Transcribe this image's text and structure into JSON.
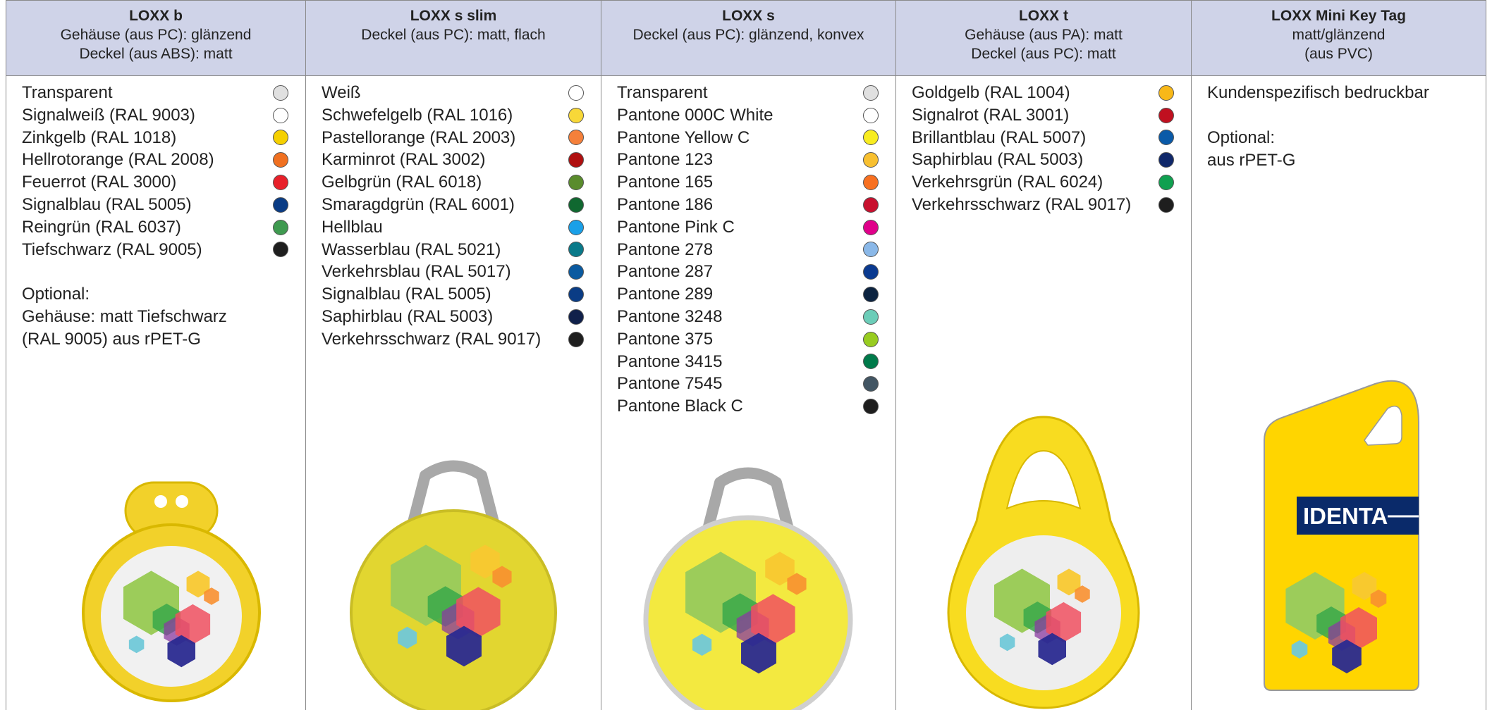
{
  "columns": [
    {
      "title": "LOXX b",
      "subtitle": [
        "Gehäuse (aus PC): glänzend",
        "Deckel (aus ABS): matt"
      ],
      "items": [
        {
          "name": "Transparent",
          "color": "#e0e0e0"
        },
        {
          "name": "Signalweiß (RAL 9003)",
          "color": "#ffffff"
        },
        {
          "name": "Zinkgelb (RAL 1018)",
          "color": "#f5d000"
        },
        {
          "name": "Hellrotorange (RAL 2008)",
          "color": "#f07020"
        },
        {
          "name": "Feuerrot (RAL 3000)",
          "color": "#e8202a"
        },
        {
          "name": "Signalblau (RAL 5005)",
          "color": "#0a3c85"
        },
        {
          "name": "Reingrün (RAL 6037)",
          "color": "#3f9a50"
        },
        {
          "name": "Tiefschwarz (RAL 9005)",
          "color": "#1e1e1e"
        }
      ],
      "notes": [
        [
          "Optional:",
          "Gehäuse: matt Tiefschwarz",
          "(RAL 9005) aus rPET-G"
        ]
      ]
    },
    {
      "title": "LOXX s slim",
      "subtitle": [
        "Deckel (aus PC): matt, flach"
      ],
      "items": [
        {
          "name": "Weiß",
          "color": "#ffffff"
        },
        {
          "name": "Schwefelgelb (RAL 1016)",
          "color": "#f8d838"
        },
        {
          "name": "Pastellorange (RAL 2003)",
          "color": "#f5803a"
        },
        {
          "name": "Karminrot (RAL 3002)",
          "color": "#b01010"
        },
        {
          "name": "Gelbgrün (RAL 6018)",
          "color": "#5a8c2c"
        },
        {
          "name": "Smaragdgrün (RAL 6001)",
          "color": "#106830"
        },
        {
          "name": "Hellblau",
          "color": "#1aa0e8"
        },
        {
          "name": "Wasserblau (RAL 5021)",
          "color": "#0a7a8a"
        },
        {
          "name": "Verkehrsblau (RAL 5017)",
          "color": "#0a5aa0"
        },
        {
          "name": "Signalblau (RAL 5005)",
          "color": "#0a3c85"
        },
        {
          "name": "Saphirblau (RAL 5003)",
          "color": "#10204a"
        },
        {
          "name": "Verkehrsschwarz (RAL 9017)",
          "color": "#1e1e1e"
        }
      ],
      "notes": []
    },
    {
      "title": "LOXX s",
      "subtitle": [
        "Deckel (aus PC): glänzend, konvex"
      ],
      "items": [
        {
          "name": "Transparent",
          "color": "#e0e0e0"
        },
        {
          "name": "Pantone 000C White",
          "color": "#ffffff"
        },
        {
          "name": "Pantone Yellow C",
          "color": "#f8ec20"
        },
        {
          "name": "Pantone 123",
          "color": "#f8c030"
        },
        {
          "name": "Pantone 165",
          "color": "#f87020"
        },
        {
          "name": "Pantone 186",
          "color": "#c8102e"
        },
        {
          "name": "Pantone Pink C",
          "color": "#e0008a"
        },
        {
          "name": "Pantone 278",
          "color": "#8ab8e8"
        },
        {
          "name": "Pantone 287",
          "color": "#0a3a90"
        },
        {
          "name": "Pantone 289",
          "color": "#0c2340"
        },
        {
          "name": "Pantone 3248",
          "color": "#6ccdb8"
        },
        {
          "name": "Pantone 375",
          "color": "#98cc20"
        },
        {
          "name": "Pantone 3415",
          "color": "#007a4a"
        },
        {
          "name": "Pantone 7545",
          "color": "#425563"
        },
        {
          "name": "Pantone Black C",
          "color": "#1e1e1e"
        }
      ],
      "notes": []
    },
    {
      "title": "LOXX t",
      "subtitle": [
        "Gehäuse (aus PA): matt",
        "Deckel (aus PC): matt"
      ],
      "items": [
        {
          "name": "Goldgelb (RAL 1004)",
          "color": "#f8b818"
        },
        {
          "name": "Signalrot (RAL 3001)",
          "color": "#c01020"
        },
        {
          "name": "Brillantblau (RAL 5007)",
          "color": "#0a5aa8"
        },
        {
          "name": "Saphirblau (RAL 5003)",
          "color": "#10286a"
        },
        {
          "name": "Verkehrsgrün (RAL 6024)",
          "color": "#10a050"
        },
        {
          "name": "Verkehrsschwarz (RAL 9017)",
          "color": "#1e1e1e"
        }
      ],
      "notes": []
    },
    {
      "title": "LOXX Mini Key Tag",
      "subtitle": [
        "matt/glänzend",
        "(aus PVC)"
      ],
      "items": [],
      "notes": [
        [
          "Kundenspezifisch bedruckbar"
        ],
        [
          "Optional:",
          "aus rPET-G"
        ]
      ],
      "image_label": "IDENTA"
    }
  ]
}
